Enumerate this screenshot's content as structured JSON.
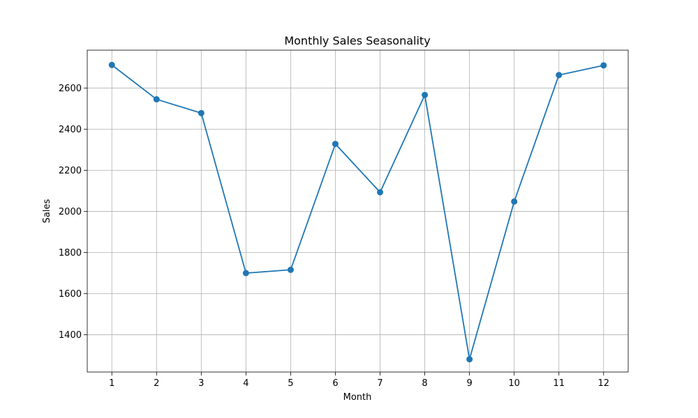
{
  "chart_data": {
    "type": "line",
    "title": "Monthly Sales Seasonality",
    "xlabel": "Month",
    "ylabel": "Sales",
    "x": [
      1,
      2,
      3,
      4,
      5,
      6,
      7,
      8,
      9,
      10,
      11,
      12
    ],
    "series": [
      {
        "values": [
          2712,
          2545,
          2478,
          1700,
          1716,
          2328,
          2093,
          2566,
          1281,
          2048,
          2663,
          2710
        ]
      }
    ],
    "xlim": [
      0.45,
      12.55
    ],
    "ylim": [
      1219,
      2784
    ],
    "xticks": [
      1,
      2,
      3,
      4,
      5,
      6,
      7,
      8,
      9,
      10,
      11,
      12
    ],
    "yticks": [
      1400,
      1600,
      1800,
      2000,
      2200,
      2400,
      2600
    ],
    "grid": true,
    "colors": {
      "line": "#1f77b4",
      "grid": "#b0b0b0"
    }
  }
}
